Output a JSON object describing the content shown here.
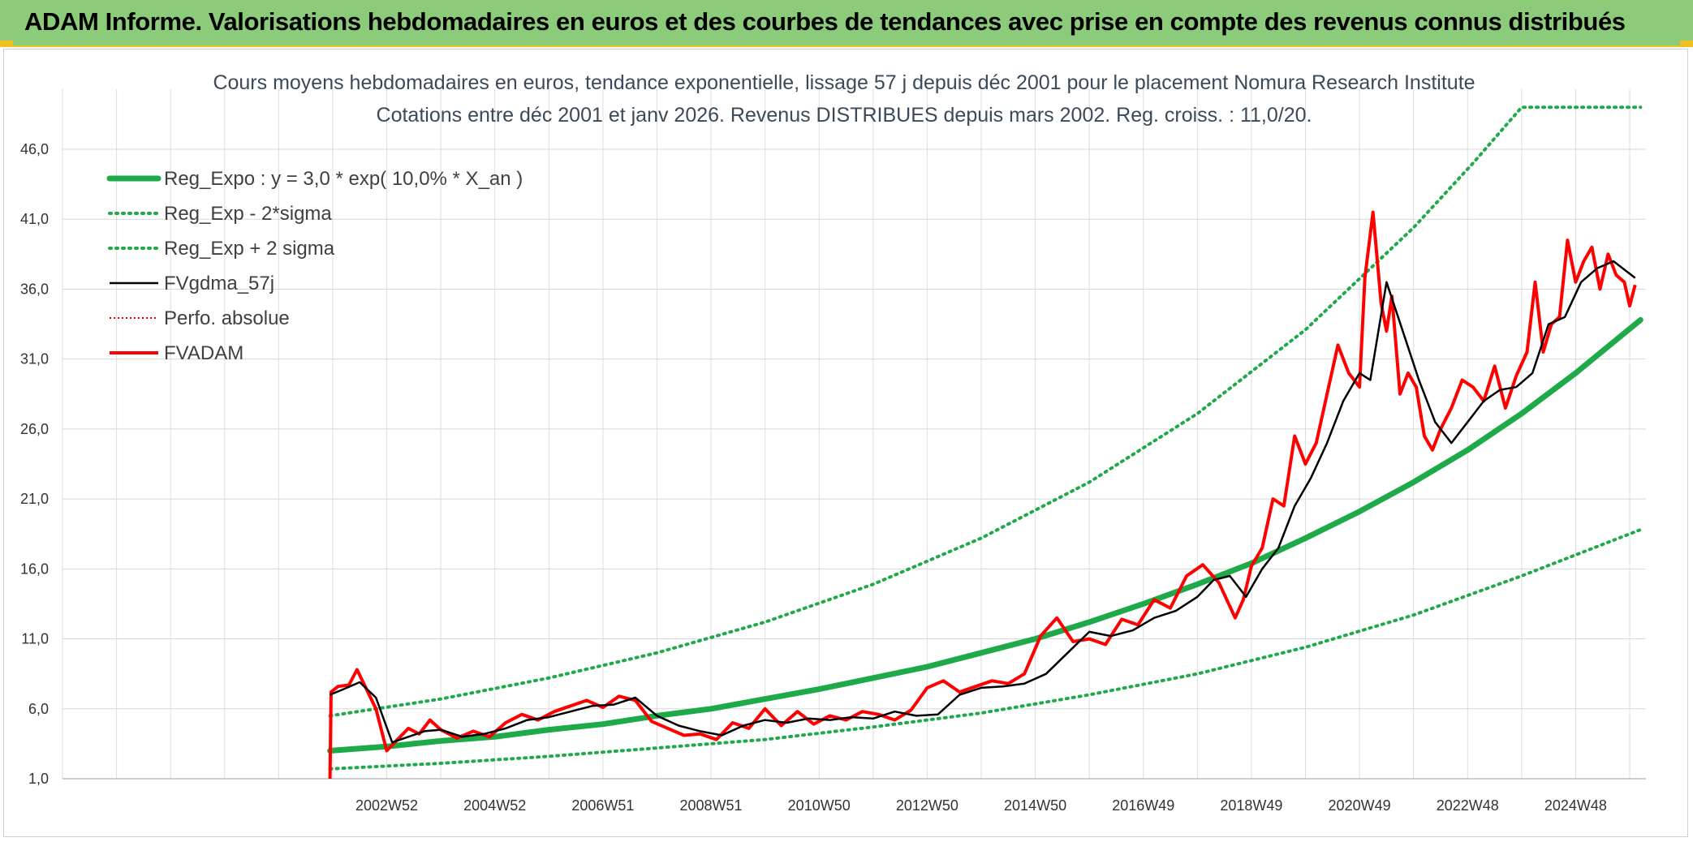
{
  "header": {
    "title": "ADAM Informe. Valorisations hebdomadaires en euros et des courbes de tendances avec prise en compte des revenus connus distribués"
  },
  "colors": {
    "header_bg": "#8bcb7a",
    "trend": "#1faa4a",
    "sigma": "#1faa4a",
    "fvgdma": "#000000",
    "perfo": "#e00000",
    "fvadam": "#ff0000"
  },
  "chart_data": {
    "type": "line",
    "title": "Cours moyens hebdomadaires en euros, tendance exponentielle, lissage 57 j depuis déc 2001 pour le placement Nomura Research Institute",
    "subtitle": "Cotations entre déc 2001 et janv 2026. Revenus DISTRIBUES depuis mars 2002. Reg. croiss. : 11,0/20.",
    "xlabel": "",
    "ylabel": "",
    "ylim": [
      1,
      50
    ],
    "grid": true,
    "legend_position": "top-left",
    "x_tick_labels": [
      "2002W52",
      "2004W52",
      "2006W51",
      "2008W51",
      "2010W50",
      "2012W50",
      "2014W50",
      "2016W49",
      "2018W49",
      "2020W49",
      "2022W48",
      "2024W48"
    ],
    "x_tick_positions": [
      2003.0,
      2005.0,
      2007.0,
      2009.0,
      2011.0,
      2013.0,
      2015.0,
      2017.0,
      2019.0,
      2021.0,
      2023.0,
      2025.0
    ],
    "y_tick_labels": [
      "1,0",
      "6,0",
      "11,0",
      "16,0",
      "21,0",
      "26,0",
      "31,0",
      "36,0",
      "41,0",
      "46,0"
    ],
    "y_ticks": [
      1,
      6,
      11,
      16,
      21,
      26,
      31,
      36,
      41,
      46
    ],
    "series": [
      {
        "name": "Reg_Expo : y = 3,0 * exp( 10,0% *  X_an )",
        "style": "solid-thick",
        "x": [
          2001.95,
          2003,
          2004,
          2005,
          2006,
          2007,
          2008,
          2009,
          2010,
          2011,
          2012,
          2013,
          2014,
          2015,
          2016,
          2017,
          2018,
          2019,
          2020,
          2021,
          2022,
          2023,
          2024,
          2025,
          2026.2
        ],
        "y": [
          3.0,
          3.3,
          3.7,
          4.0,
          4.5,
          4.9,
          5.5,
          6.0,
          6.7,
          7.4,
          8.2,
          9.0,
          10.0,
          11.0,
          12.2,
          13.5,
          14.9,
          16.4,
          18.2,
          20.1,
          22.2,
          24.5,
          27.1,
          30.0,
          33.8
        ]
      },
      {
        "name": "Reg_Exp - 2*sigma",
        "style": "dotted",
        "x": [
          2001.95,
          2004,
          2006,
          2008,
          2010,
          2012,
          2014,
          2016,
          2018,
          2020,
          2022,
          2024,
          2026.2
        ],
        "y": [
          1.7,
          2.1,
          2.6,
          3.2,
          3.8,
          4.7,
          5.7,
          7.0,
          8.5,
          10.4,
          12.7,
          15.5,
          18.8
        ]
      },
      {
        "name": "Reg_Exp + 2 sigma",
        "style": "dotted",
        "x": [
          2001.95,
          2004,
          2006,
          2008,
          2010,
          2012,
          2014,
          2016,
          2018,
          2020,
          2022,
          2023.1,
          2024,
          2026.2
        ],
        "y": [
          5.5,
          6.7,
          8.2,
          10.0,
          12.2,
          14.9,
          18.2,
          22.2,
          27.1,
          33.1,
          40.4,
          45.0,
          49.0,
          49.0
        ]
      },
      {
        "name": "FVgdma_57j",
        "style": "solid",
        "x": [
          2001.95,
          2002.2,
          2002.5,
          2002.8,
          2003.1,
          2003.4,
          2003.7,
          2004.0,
          2004.4,
          2004.8,
          2005.2,
          2005.6,
          2006.0,
          2006.4,
          2006.8,
          2007.2,
          2007.6,
          2008.0,
          2008.4,
          2008.8,
          2009.2,
          2009.6,
          2010.0,
          2010.4,
          2010.8,
          2011.2,
          2011.6,
          2012.0,
          2012.4,
          2012.8,
          2013.2,
          2013.6,
          2014.0,
          2014.4,
          2014.8,
          2015.2,
          2015.6,
          2016.0,
          2016.4,
          2016.8,
          2017.2,
          2017.6,
          2018.0,
          2018.3,
          2018.6,
          2018.9,
          2019.2,
          2019.5,
          2019.8,
          2020.1,
          2020.4,
          2020.7,
          2021.0,
          2021.2,
          2021.5,
          2021.8,
          2022.1,
          2022.4,
          2022.7,
          2023.0,
          2023.3,
          2023.6,
          2023.9,
          2024.2,
          2024.5,
          2024.8,
          2025.1,
          2025.4,
          2025.7,
          2026.1
        ],
        "y": [
          7.0,
          7.4,
          7.9,
          6.8,
          3.6,
          4.0,
          4.4,
          4.5,
          4.0,
          4.2,
          4.6,
          5.2,
          5.4,
          5.8,
          6.2,
          6.3,
          6.8,
          5.5,
          4.8,
          4.4,
          4.1,
          4.8,
          5.2,
          5.0,
          5.3,
          5.2,
          5.4,
          5.3,
          5.8,
          5.5,
          5.6,
          7.0,
          7.5,
          7.6,
          7.8,
          8.5,
          10.0,
          11.5,
          11.2,
          11.6,
          12.5,
          13.0,
          14.0,
          15.2,
          15.5,
          14.0,
          16.0,
          17.5,
          20.5,
          22.5,
          25.0,
          28.0,
          30.0,
          29.5,
          36.5,
          33.0,
          29.5,
          26.5,
          25.0,
          26.5,
          28.0,
          28.8,
          29.0,
          30.0,
          33.5,
          34.0,
          36.5,
          37.5,
          38.0,
          36.8
        ]
      },
      {
        "name": "Perfo. absolue",
        "style": "dotted-thin",
        "x": [],
        "y": []
      },
      {
        "name": "FVADAM",
        "style": "solid-bold",
        "x": [
          2001.95,
          2001.97,
          2002.1,
          2002.3,
          2002.45,
          2002.6,
          2002.8,
          2003.0,
          2003.2,
          2003.4,
          2003.6,
          2003.8,
          2004.0,
          2004.3,
          2004.6,
          2004.9,
          2005.2,
          2005.5,
          2005.8,
          2006.1,
          2006.4,
          2006.7,
          2007.0,
          2007.3,
          2007.6,
          2007.9,
          2008.2,
          2008.5,
          2008.8,
          2009.1,
          2009.4,
          2009.7,
          2010.0,
          2010.3,
          2010.6,
          2010.9,
          2011.2,
          2011.5,
          2011.8,
          2012.1,
          2012.4,
          2012.7,
          2013.0,
          2013.3,
          2013.6,
          2013.9,
          2014.2,
          2014.5,
          2014.8,
          2015.1,
          2015.4,
          2015.7,
          2016.0,
          2016.3,
          2016.6,
          2016.9,
          2017.2,
          2017.5,
          2017.8,
          2018.1,
          2018.4,
          2018.7,
          2018.85,
          2019.0,
          2019.2,
          2019.4,
          2019.6,
          2019.8,
          2020.0,
          2020.2,
          2020.4,
          2020.6,
          2020.8,
          2021.0,
          2021.1,
          2021.25,
          2021.4,
          2021.5,
          2021.6,
          2021.75,
          2021.9,
          2022.05,
          2022.2,
          2022.35,
          2022.5,
          2022.7,
          2022.9,
          2023.1,
          2023.3,
          2023.5,
          2023.7,
          2023.9,
          2024.1,
          2024.25,
          2024.4,
          2024.55,
          2024.7,
          2024.85,
          2025.0,
          2025.15,
          2025.3,
          2025.45,
          2025.6,
          2025.75,
          2025.9,
          2026.0,
          2026.1
        ],
        "y": [
          1.0,
          7.2,
          7.6,
          7.7,
          8.8,
          7.6,
          6.0,
          3.0,
          3.8,
          4.6,
          4.2,
          5.2,
          4.5,
          3.9,
          4.4,
          4.0,
          5.0,
          5.6,
          5.2,
          5.8,
          6.2,
          6.6,
          6.1,
          6.9,
          6.6,
          5.1,
          4.6,
          4.1,
          4.2,
          3.8,
          5.0,
          4.6,
          6.0,
          4.8,
          5.8,
          4.9,
          5.5,
          5.2,
          5.8,
          5.6,
          5.2,
          5.9,
          7.5,
          8.0,
          7.2,
          7.6,
          8.0,
          7.8,
          8.5,
          11.2,
          12.5,
          10.8,
          11.0,
          10.6,
          12.4,
          12.0,
          13.8,
          13.2,
          15.5,
          16.3,
          15.0,
          12.5,
          13.8,
          16.2,
          17.5,
          21.0,
          20.5,
          25.5,
          23.5,
          25.0,
          28.5,
          32.0,
          30.0,
          29.0,
          36.8,
          41.5,
          35.0,
          33.0,
          35.5,
          28.5,
          30.0,
          29.0,
          25.5,
          24.5,
          26.0,
          27.5,
          29.5,
          29.0,
          28.0,
          30.5,
          27.5,
          29.8,
          31.5,
          36.5,
          31.5,
          33.5,
          34.0,
          39.5,
          36.5,
          38.0,
          39.0,
          36.0,
          38.5,
          37.0,
          36.5,
          34.8,
          36.3
        ]
      }
    ]
  }
}
